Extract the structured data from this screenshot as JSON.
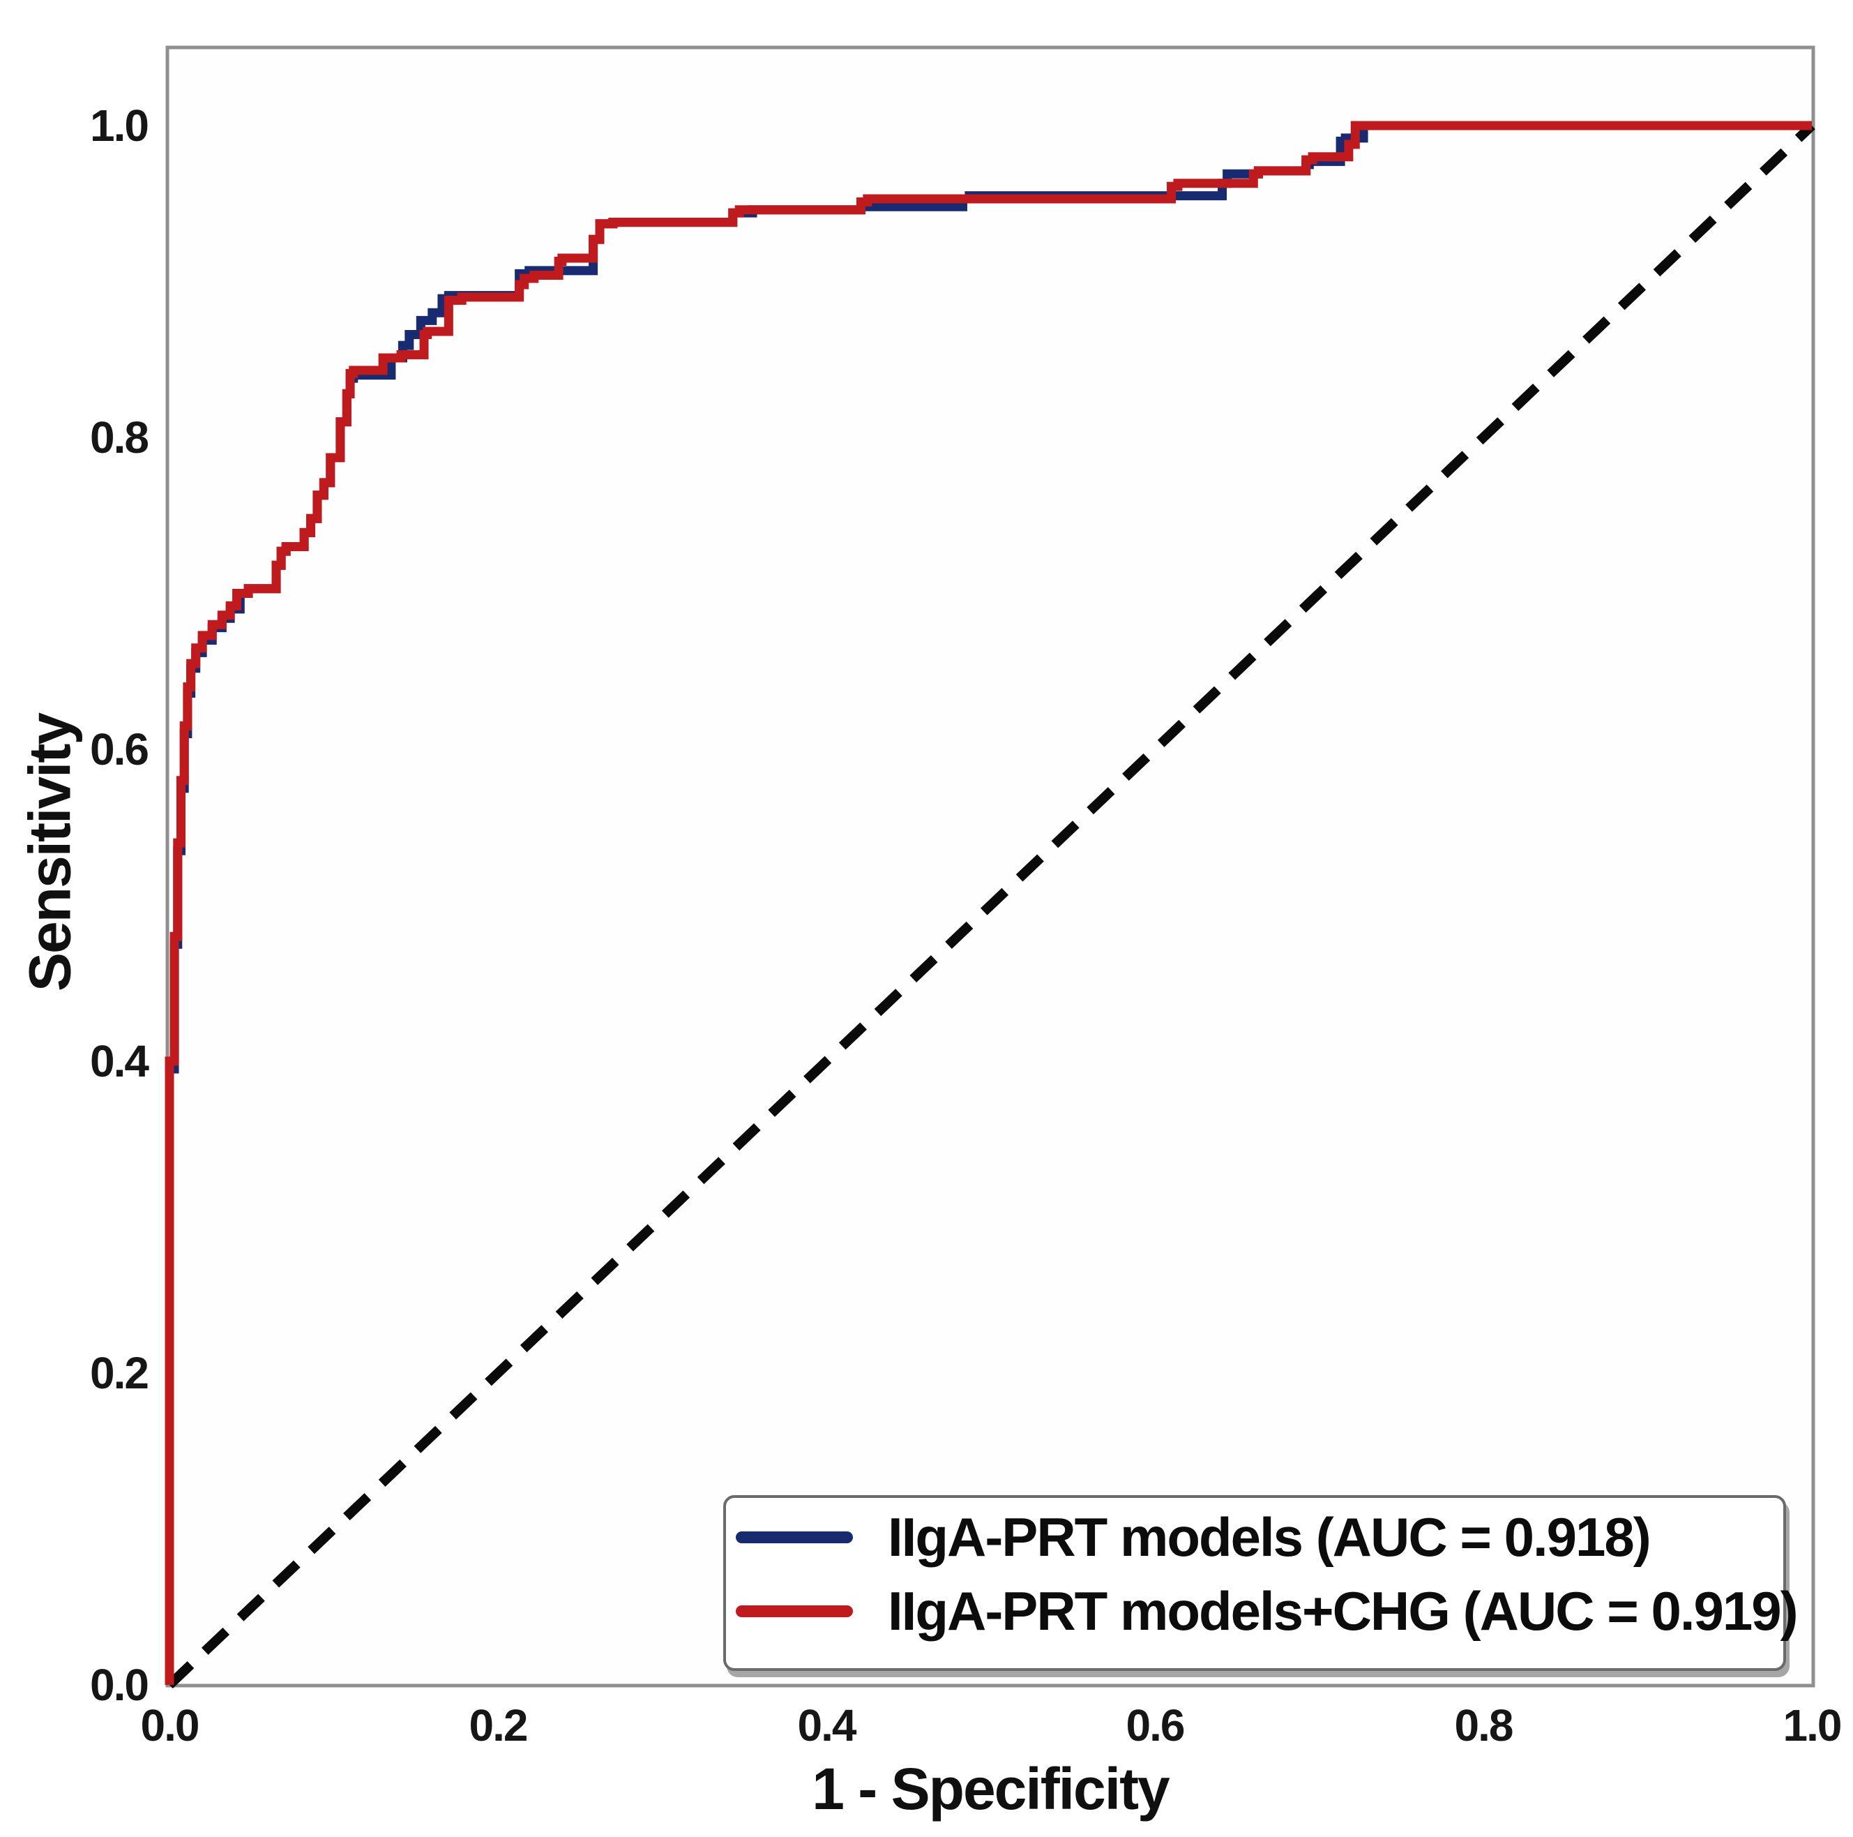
{
  "chart_data": {
    "type": "line",
    "subtype": "roc-curve",
    "title": "",
    "xlabel": "1 - Specificity",
    "ylabel": "Sensitivity",
    "xlim": [
      0.0,
      1.0
    ],
    "ylim": [
      0.0,
      1.0
    ],
    "x_ticks": [
      "0.0",
      "0.2",
      "0.4",
      "0.6",
      "0.8",
      "1.0"
    ],
    "y_ticks": [
      "0.0",
      "0.2",
      "0.4",
      "0.6",
      "0.8",
      "1.0"
    ],
    "grid": false,
    "legend_position": "lower right",
    "frame_color": "#8f8f8f",
    "reference_line": {
      "name": "chance-diagonal",
      "style": "dashed",
      "color": "#0a0a0a",
      "from": [
        0.0,
        0.0
      ],
      "to": [
        1.0,
        1.0
      ]
    },
    "series": [
      {
        "name": "IIgA-PRT models (AUC = 0.918)",
        "auc": 0.918,
        "color": "#182a70",
        "points": [
          [
            0.0,
            0.0
          ],
          [
            0.0,
            0.295
          ],
          [
            0.003,
            0.395
          ],
          [
            0.005,
            0.475
          ],
          [
            0.007,
            0.535
          ],
          [
            0.009,
            0.575
          ],
          [
            0.011,
            0.61
          ],
          [
            0.013,
            0.636
          ],
          [
            0.016,
            0.652
          ],
          [
            0.02,
            0.662
          ],
          [
            0.026,
            0.67
          ],
          [
            0.032,
            0.678
          ],
          [
            0.037,
            0.684
          ],
          [
            0.043,
            0.69
          ],
          [
            0.048,
            0.7
          ],
          [
            0.065,
            0.703
          ],
          [
            0.068,
            0.718
          ],
          [
            0.071,
            0.727
          ],
          [
            0.082,
            0.73
          ],
          [
            0.086,
            0.739
          ],
          [
            0.09,
            0.748
          ],
          [
            0.094,
            0.763
          ],
          [
            0.098,
            0.771
          ],
          [
            0.104,
            0.787
          ],
          [
            0.108,
            0.81
          ],
          [
            0.11,
            0.828
          ],
          [
            0.112,
            0.838
          ],
          [
            0.135,
            0.84
          ],
          [
            0.142,
            0.851
          ],
          [
            0.146,
            0.859
          ],
          [
            0.153,
            0.866
          ],
          [
            0.16,
            0.875
          ],
          [
            0.166,
            0.88
          ],
          [
            0.17,
            0.889
          ],
          [
            0.213,
            0.891
          ],
          [
            0.219,
            0.905
          ],
          [
            0.258,
            0.907
          ],
          [
            0.262,
            0.927
          ],
          [
            0.27,
            0.937
          ],
          [
            0.343,
            0.938
          ],
          [
            0.355,
            0.944
          ],
          [
            0.421,
            0.946
          ],
          [
            0.483,
            0.948
          ],
          [
            0.487,
            0.953
          ],
          [
            0.641,
            0.955
          ],
          [
            0.644,
            0.963
          ],
          [
            0.663,
            0.969
          ],
          [
            0.692,
            0.971
          ],
          [
            0.694,
            0.975
          ],
          [
            0.713,
            0.977
          ],
          [
            0.716,
            0.99
          ],
          [
            0.727,
            0.992
          ],
          [
            0.731,
            1.0
          ],
          [
            1.0,
            1.0
          ]
        ]
      },
      {
        "name": "IIgA-PRT models+CHG (AUC = 0.919)",
        "auc": 0.919,
        "color": "#bf1b1e",
        "points": [
          [
            0.0,
            0.0
          ],
          [
            0.0,
            0.3
          ],
          [
            0.003,
            0.4
          ],
          [
            0.005,
            0.48
          ],
          [
            0.007,
            0.54
          ],
          [
            0.009,
            0.58
          ],
          [
            0.011,
            0.615
          ],
          [
            0.013,
            0.64
          ],
          [
            0.016,
            0.655
          ],
          [
            0.02,
            0.665
          ],
          [
            0.026,
            0.673
          ],
          [
            0.032,
            0.68
          ],
          [
            0.037,
            0.686
          ],
          [
            0.041,
            0.692
          ],
          [
            0.048,
            0.7
          ],
          [
            0.065,
            0.703
          ],
          [
            0.068,
            0.718
          ],
          [
            0.071,
            0.727
          ],
          [
            0.082,
            0.73
          ],
          [
            0.086,
            0.739
          ],
          [
            0.09,
            0.748
          ],
          [
            0.094,
            0.763
          ],
          [
            0.098,
            0.771
          ],
          [
            0.104,
            0.787
          ],
          [
            0.108,
            0.81
          ],
          [
            0.11,
            0.828
          ],
          [
            0.112,
            0.841
          ],
          [
            0.13,
            0.843
          ],
          [
            0.141,
            0.851
          ],
          [
            0.155,
            0.853
          ],
          [
            0.157,
            0.866
          ],
          [
            0.17,
            0.868
          ],
          [
            0.178,
            0.888
          ],
          [
            0.213,
            0.89
          ],
          [
            0.216,
            0.898
          ],
          [
            0.222,
            0.902
          ],
          [
            0.237,
            0.904
          ],
          [
            0.239,
            0.913
          ],
          [
            0.258,
            0.915
          ],
          [
            0.262,
            0.927
          ],
          [
            0.27,
            0.937
          ],
          [
            0.343,
            0.938
          ],
          [
            0.347,
            0.944
          ],
          [
            0.421,
            0.946
          ],
          [
            0.425,
            0.951
          ],
          [
            0.61,
            0.953
          ],
          [
            0.614,
            0.961
          ],
          [
            0.66,
            0.963
          ],
          [
            0.663,
            0.969
          ],
          [
            0.692,
            0.971
          ],
          [
            0.696,
            0.978
          ],
          [
            0.718,
            0.98
          ],
          [
            0.722,
            0.988
          ],
          [
            0.727,
            1.0
          ],
          [
            1.0,
            1.0
          ]
        ]
      }
    ]
  },
  "legend": {
    "row1_label": "IIgA-PRT models (AUC = 0.918)",
    "row2_label": "IIgA-PRT models+CHG (AUC = 0.919)"
  }
}
